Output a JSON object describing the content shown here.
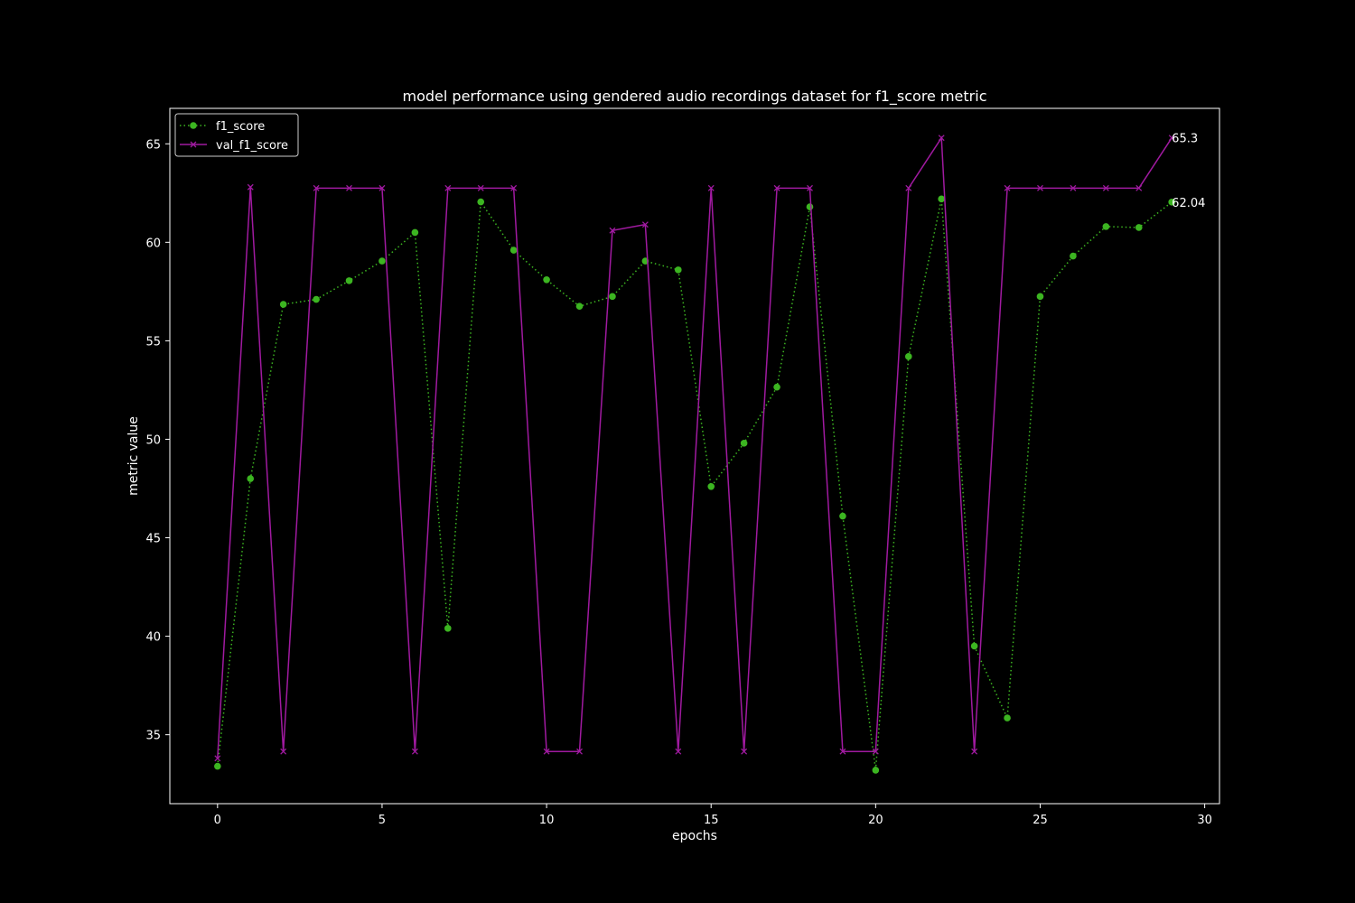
{
  "chart_data": {
    "type": "line",
    "title": "model performance using gendered audio recordings dataset for f1_score metric",
    "xlabel": "epochs",
    "ylabel": "metric value",
    "xlim": [
      -1.45,
      30.45
    ],
    "ylim": [
      31.5,
      66.8
    ],
    "xticks": [
      0,
      5,
      10,
      15,
      20,
      25,
      30
    ],
    "yticks": [
      35,
      40,
      45,
      50,
      55,
      60,
      65
    ],
    "legend_position": "top-left",
    "background": "#000000",
    "text_color": "#ffffff",
    "x": [
      0,
      1,
      2,
      3,
      4,
      5,
      6,
      7,
      8,
      9,
      10,
      11,
      12,
      13,
      14,
      15,
      16,
      17,
      18,
      19,
      20,
      21,
      22,
      23,
      24,
      25,
      26,
      27,
      28,
      29
    ],
    "series": [
      {
        "name": "f1_score",
        "color": "#3cb521",
        "line_style": "dotted",
        "marker": "circle",
        "values": [
          33.4,
          48.0,
          56.85,
          57.1,
          58.05,
          59.05,
          60.5,
          40.4,
          62.05,
          59.6,
          58.1,
          56.75,
          57.25,
          59.05,
          58.6,
          47.6,
          49.8,
          52.65,
          61.8,
          46.1,
          33.2,
          54.2,
          62.2,
          39.5,
          35.85,
          57.25,
          59.3,
          60.8,
          60.75,
          62.04
        ],
        "end_label": "62.04"
      },
      {
        "name": "val_f1_score",
        "color": "#a01aa0",
        "line_style": "solid",
        "marker": "x",
        "values": [
          33.8,
          62.8,
          34.15,
          62.75,
          62.75,
          62.75,
          34.15,
          62.75,
          62.75,
          62.75,
          34.15,
          34.15,
          60.6,
          60.9,
          34.15,
          62.75,
          34.15,
          62.75,
          62.75,
          34.15,
          34.15,
          62.75,
          65.3,
          34.15,
          62.75,
          62.75,
          62.75,
          62.75,
          62.75,
          65.3
        ],
        "end_label": "65.3"
      }
    ]
  }
}
